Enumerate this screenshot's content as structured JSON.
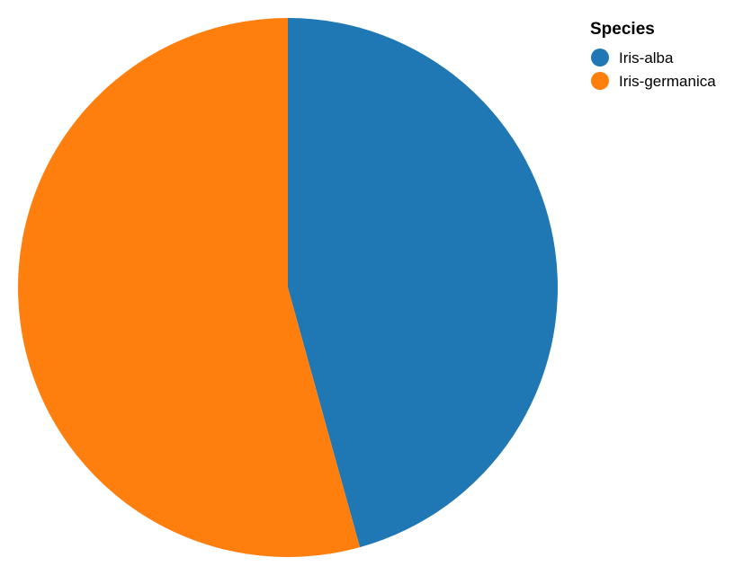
{
  "chart_data": {
    "type": "pie",
    "categories": [
      "Iris-alba",
      "Iris-germanica"
    ],
    "values": [
      45.7,
      54.3
    ],
    "colors": [
      "#1f77b4",
      "#ff7f0e"
    ],
    "start_angle_deg": 0,
    "direction": "clockwise",
    "legend": {
      "title": "Species",
      "placement": "top-right",
      "entries": [
        "Iris-alba",
        "Iris-germanica"
      ]
    }
  }
}
